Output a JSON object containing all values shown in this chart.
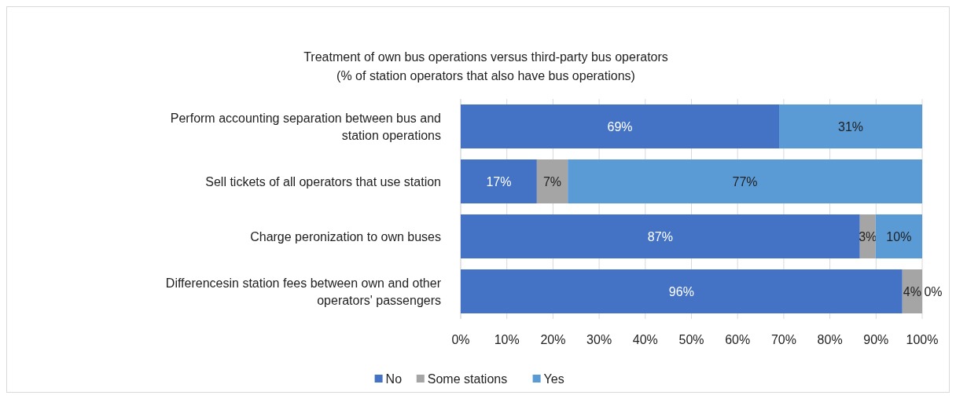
{
  "chart_data": {
    "type": "bar",
    "orientation": "horizontal",
    "stacked": true,
    "title": "Treatment of own bus operations versus third-party bus operators",
    "subtitle": "(% of station operators that also have bus operations)",
    "categories": [
      "Perform accounting separation between bus and station operations",
      "Sell tickets of all operators that use station",
      "Charge peronization to own buses",
      "Differencesin station fees between own and other operators' passengers"
    ],
    "series": [
      {
        "name": "No",
        "color": "#4472c4",
        "values": [
          69,
          16.5,
          86.5,
          95.7
        ],
        "value_labels": [
          "69%",
          "17%",
          "87%",
          "96%"
        ]
      },
      {
        "name": "Some stations",
        "color": "#a5a5a5",
        "values": [
          0,
          6.7,
          3.4,
          4.3
        ],
        "value_labels": [
          null,
          "7%",
          "3%",
          "4%"
        ]
      },
      {
        "name": "Yes",
        "color": "#5b9bd5",
        "values": [
          31,
          76.8,
          10.1,
          0
        ],
        "value_labels": [
          "31%",
          "77%",
          "10%",
          "0%"
        ]
      }
    ],
    "xlim": [
      0,
      100
    ],
    "xticks": [
      {
        "value": 0,
        "label": "0%"
      },
      {
        "value": 10,
        "label": "10%"
      },
      {
        "value": 20,
        "label": "20%"
      },
      {
        "value": 30,
        "label": "30%"
      },
      {
        "value": 40,
        "label": "40%"
      },
      {
        "value": 50,
        "label": "50%"
      },
      {
        "value": 60,
        "label": "60%"
      },
      {
        "value": 70,
        "label": "70%"
      },
      {
        "value": 80,
        "label": "80%"
      },
      {
        "value": 90,
        "label": "90%"
      },
      {
        "value": 100,
        "label": "100%"
      }
    ],
    "grid": "x",
    "legend": "bottom"
  }
}
